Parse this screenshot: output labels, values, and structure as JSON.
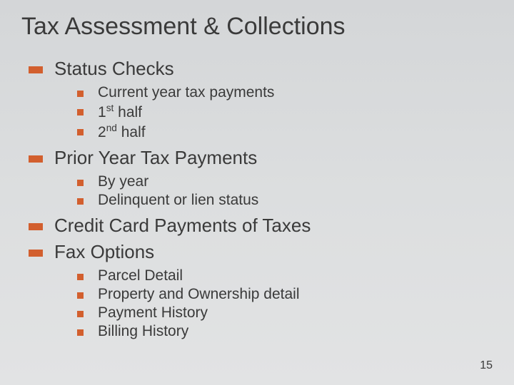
{
  "slide": {
    "title": "Tax Assessment & Collections",
    "page_number": "15",
    "background_gradient": [
      "#d4d6d8",
      "#dcdedf",
      "#e2e3e4"
    ],
    "bullet_color": "#d25f2e",
    "text_color": "#3a3a3a",
    "title_fontsize": 34,
    "l1_fontsize": 26,
    "l2_fontsize": 21,
    "l1_bullet_size": {
      "width": 20,
      "height": 10
    },
    "l2_bullet_size": {
      "width": 9,
      "height": 9
    },
    "sections": [
      {
        "label": "Status Checks",
        "items": [
          "Current year tax payments",
          "1st half",
          "2nd half"
        ]
      },
      {
        "label": "Prior Year Tax Payments",
        "items": [
          "By year",
          "Delinquent or lien status"
        ]
      },
      {
        "label": "Credit Card Payments of Taxes",
        "items": []
      },
      {
        "label": "Fax Options",
        "items": [
          "Parcel Detail",
          "Property and Ownership detail",
          "Payment History",
          "Billing History"
        ]
      }
    ]
  }
}
